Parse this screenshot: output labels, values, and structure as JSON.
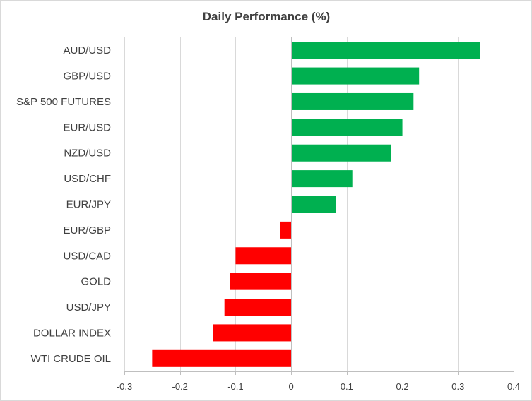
{
  "chart_data": {
    "type": "bar",
    "orientation": "horizontal",
    "title": "Daily Performance  (%)",
    "categories": [
      "AUD/USD",
      "GBP/USD",
      "S&P 500 FUTURES",
      "EUR/USD",
      "NZD/USD",
      "USD/CHF",
      "EUR/JPY",
      "EUR/GBP",
      "USD/CAD",
      "GOLD",
      "USD/JPY",
      "DOLLAR INDEX",
      "WTI CRUDE OIL"
    ],
    "values": [
      0.34,
      0.23,
      0.22,
      0.2,
      0.18,
      0.11,
      0.08,
      -0.02,
      -0.1,
      -0.11,
      -0.12,
      -0.14,
      -0.25
    ],
    "xlim": [
      -0.3,
      0.4
    ],
    "xticks": [
      "-0.3",
      "-0.2",
      "-0.1",
      "0",
      "0.1",
      "0.2",
      "0.3",
      "0.4"
    ],
    "xtick_values": [
      -0.3,
      -0.2,
      -0.1,
      0,
      0.1,
      0.2,
      0.3,
      0.4
    ],
    "grid": "vertical",
    "colors": {
      "positive": "#00b050",
      "negative": "#ff0000",
      "gridline": "#d9d9d9",
      "axis": "#bfbfbf",
      "text": "#404040"
    }
  }
}
